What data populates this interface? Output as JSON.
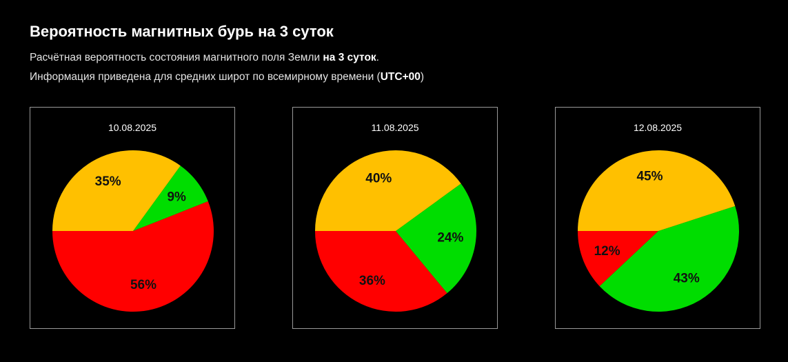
{
  "header": {
    "title": "Вероятность магнитных бурь на 3 суток",
    "line1_prefix": "Расчётная вероятность состояния магнитного поля Земли ",
    "line1_bold": "на 3 суток",
    "line1_suffix": ".",
    "line2_prefix": "Информация приведена для средних широт по всемирному времени (",
    "line2_bold": "UTC+00",
    "line2_suffix": ")"
  },
  "colors": {
    "green": "#00dd00",
    "yellow": "#ffc000",
    "red": "#ff0000",
    "background": "#000000",
    "border": "#9a9a9a"
  },
  "chart_data": [
    {
      "type": "pie",
      "title": "10.08.2025",
      "slices": [
        {
          "value": 56,
          "label": "56%",
          "color": "#ff0000"
        },
        {
          "value": 9,
          "label": "9%",
          "color": "#00dd00"
        },
        {
          "value": 35,
          "label": "35%",
          "color": "#ffc000"
        }
      ]
    },
    {
      "type": "pie",
      "title": "11.08.2025",
      "slices": [
        {
          "value": 36,
          "label": "36%",
          "color": "#ff0000"
        },
        {
          "value": 24,
          "label": "24%",
          "color": "#00dd00"
        },
        {
          "value": 40,
          "label": "40%",
          "color": "#ffc000"
        }
      ]
    },
    {
      "type": "pie",
      "title": "12.08.2025",
      "slices": [
        {
          "value": 12,
          "label": "12%",
          "color": "#ff0000"
        },
        {
          "value": 43,
          "label": "43%",
          "color": "#00dd00"
        },
        {
          "value": 45,
          "label": "45%",
          "color": "#ffc000"
        }
      ]
    }
  ]
}
